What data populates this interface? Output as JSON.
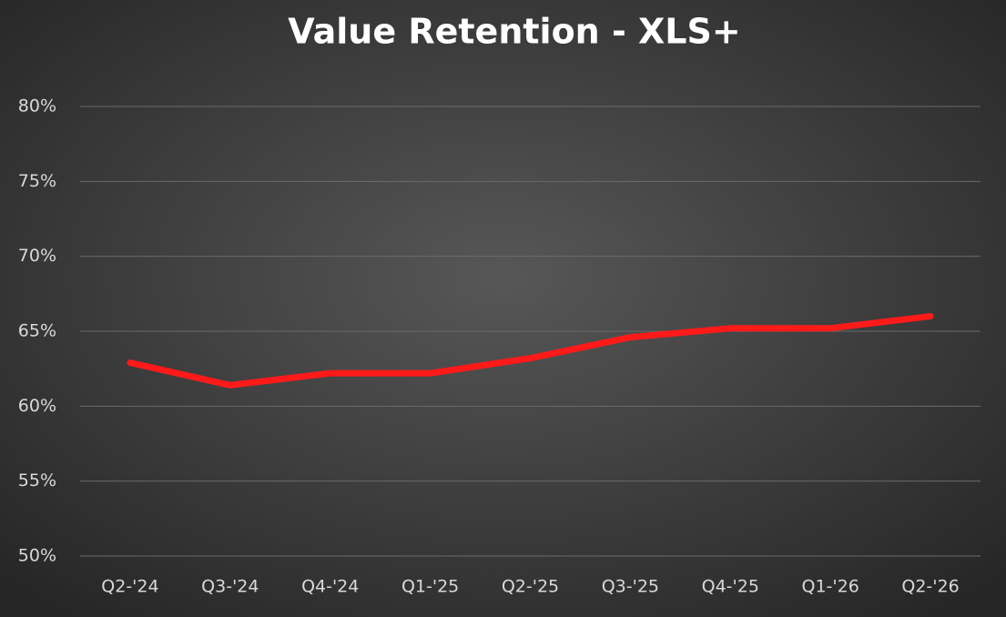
{
  "chart_data": {
    "type": "line",
    "title": "Value Retention - XLS+",
    "categories": [
      "Q2-'24",
      "Q3-'24",
      "Q4-'24",
      "Q1-'25",
      "Q2-'25",
      "Q3-'25",
      "Q4-'25",
      "Q1-'26",
      "Q2-'26"
    ],
    "series": [
      {
        "name": "XLS+",
        "color": "#ff1a1a",
        "values": [
          62.9,
          61.4,
          62.2,
          62.2,
          63.2,
          64.6,
          65.2,
          65.2,
          66.0
        ]
      }
    ],
    "ylim": [
      50,
      80
    ],
    "yticks": [
      {
        "value": 50,
        "label": "50%"
      },
      {
        "value": 55,
        "label": "55%"
      },
      {
        "value": 60,
        "label": "60%"
      },
      {
        "value": 65,
        "label": "65%"
      },
      {
        "value": 70,
        "label": "70%"
      },
      {
        "value": 75,
        "label": "75%"
      },
      {
        "value": 80,
        "label": "80%"
      }
    ],
    "grid": true
  }
}
